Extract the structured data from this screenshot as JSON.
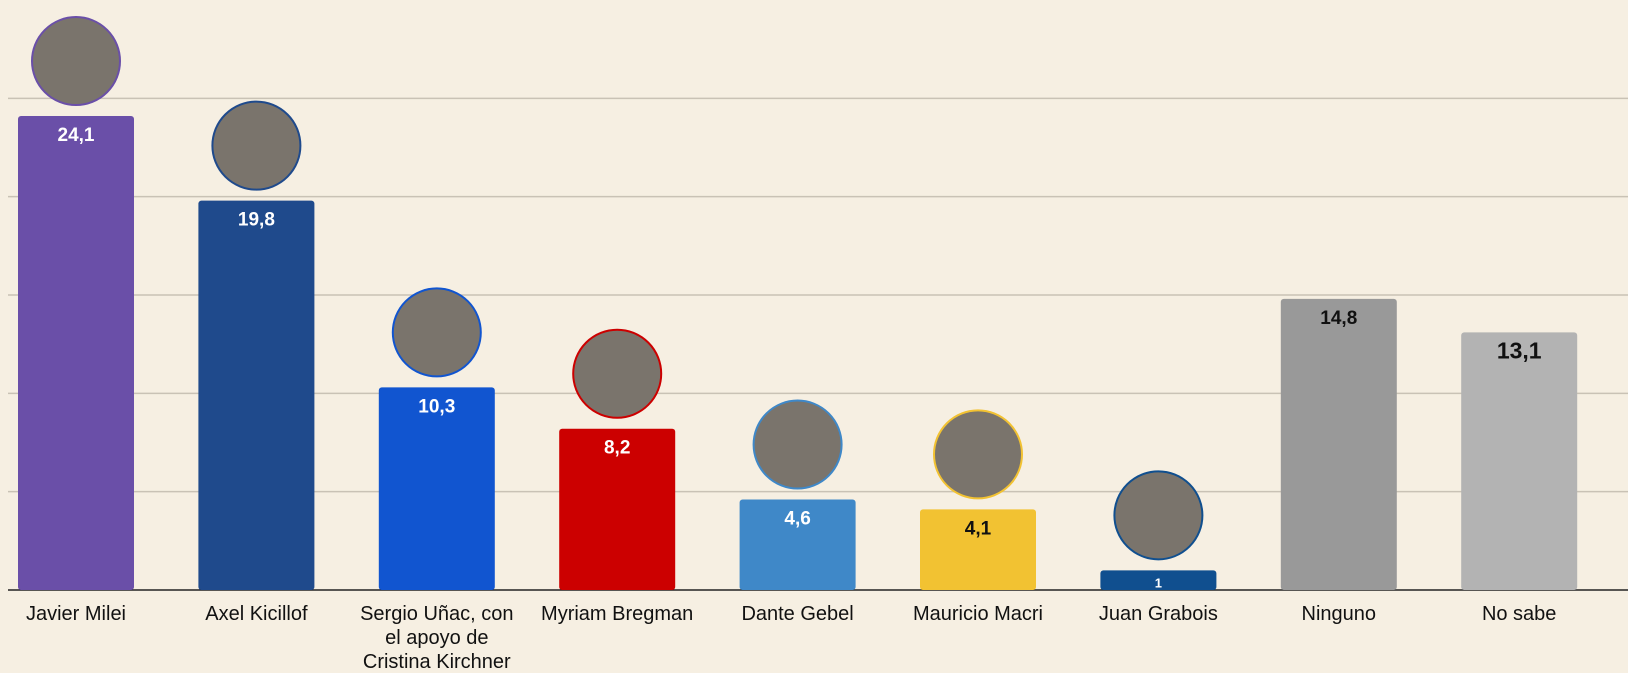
{
  "chart_data": {
    "type": "bar",
    "categories": [
      "Javier Milei",
      "Axel Kicillof",
      "Sergio Uñac, con el apoyo de Cristina Kirchner",
      "Myriam Bregman",
      "Dante Gebel",
      "Mauricio Macri",
      "Juan Grabois",
      "Ninguno",
      "No sabe"
    ],
    "values": [
      24.1,
      19.8,
      10.3,
      8.2,
      4.6,
      4.1,
      1,
      14.8,
      13.1
    ],
    "value_labels": [
      "24,1",
      "19,8",
      "10,3",
      "8,2",
      "4,6",
      "4,1",
      "1",
      "14,8",
      "13,1"
    ],
    "colors": [
      "#6a4fa8",
      "#1f4a8c",
      "#1155d0",
      "#cc0000",
      "#3f88c8",
      "#f2c232",
      "#104f8f",
      "#999999",
      "#b3b3b3"
    ],
    "label_colors": [
      "#ffffff",
      "#ffffff",
      "#ffffff",
      "#ffffff",
      "#ffffff",
      "#111111",
      "#ffffff",
      "#111111",
      "#111111"
    ],
    "ylim": [
      0,
      30
    ],
    "yticks": [
      0,
      5,
      10,
      15,
      20,
      25
    ],
    "grid": true
  }
}
